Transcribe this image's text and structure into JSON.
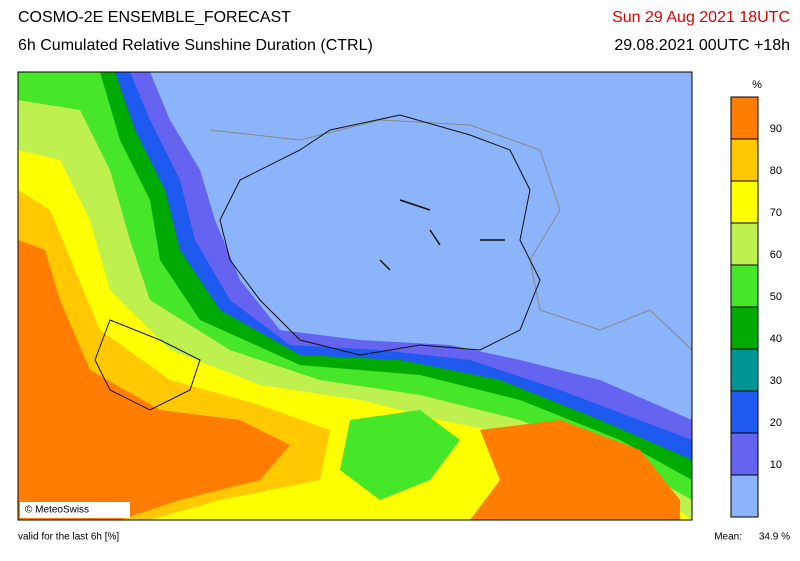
{
  "header": {
    "title": "COSMO-2E ENSEMBLE_FORECAST",
    "subtitle": "6h Cumulated Relative Sunshine Duration (CTRL)",
    "valid_time": "Sun 29 Aug 2021 18UTC",
    "run_time": "29.08.2021 00UTC +18h"
  },
  "colorbar": {
    "unit": "%",
    "range": [
      0,
      100
    ],
    "ticks": [
      10,
      20,
      30,
      40,
      50,
      60,
      70,
      80,
      90
    ],
    "colors": [
      "#8cb4fa",
      "#6464f0",
      "#1e5af0",
      "#009696",
      "#00aa00",
      "#46e628",
      "#bef050",
      "#ffff00",
      "#ffc800",
      "#ff7d00"
    ]
  },
  "map": {
    "credit": "© MeteoSwiss"
  },
  "footer": {
    "note": "valid for the last 6h [%]",
    "mean_label": "Mean:",
    "mean_value": "34.9 %"
  }
}
